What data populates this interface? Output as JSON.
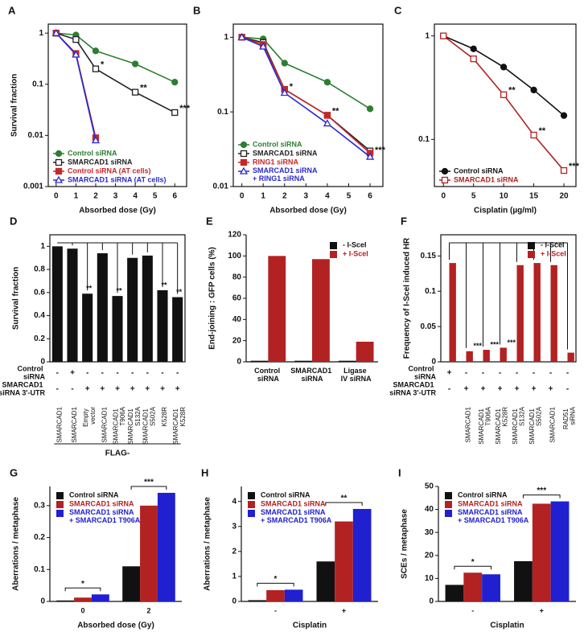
{
  "chart_data": [
    {
      "label": "A",
      "type": "line",
      "log_y": true,
      "frame": true,
      "ylabel": "Survival fraction",
      "xlabel": "Absorbed dose (Gy)",
      "xlim": [
        -0.4,
        6.6
      ],
      "xticks": [
        0,
        1,
        2,
        3,
        4,
        5,
        6
      ],
      "ylim": [
        0.001,
        1.5
      ],
      "yticks": [
        0.001,
        0.01,
        0.1,
        1
      ],
      "legend": "lower left",
      "series": [
        {
          "name": "Control siRNA",
          "color": "#2e7d32",
          "marker": "circle",
          "filled": true,
          "x": [
            0,
            1,
            2,
            4,
            6
          ],
          "values": [
            1,
            0.92,
            0.45,
            0.25,
            0.11
          ]
        },
        {
          "name": "SMARCAD1 siRNA",
          "color": "#222222",
          "marker": "square",
          "filled": false,
          "x": [
            0,
            1,
            2,
            4,
            6
          ],
          "values": [
            1,
            0.75,
            0.2,
            0.07,
            0.028
          ]
        },
        {
          "name": "Control siRNA (AT cells)",
          "color": "#c62828",
          "marker": "square",
          "filled": true,
          "x": [
            0,
            1,
            2
          ],
          "values": [
            1,
            0.4,
            0.009
          ]
        },
        {
          "name": "SMARCAD1 siRNA (AT cells)",
          "color": "#2a2acd",
          "marker": "triangle",
          "filled": false,
          "x": [
            0,
            1,
            2
          ],
          "values": [
            1,
            0.38,
            0.008
          ]
        }
      ],
      "annotations": [
        {
          "text": "*",
          "x": 2,
          "y": 0.2
        },
        {
          "text": "**",
          "x": 4,
          "y": 0.07
        },
        {
          "text": "***",
          "x": 6,
          "y": 0.028
        }
      ]
    },
    {
      "label": "B",
      "type": "line",
      "log_y": true,
      "frame": true,
      "xlabel": "Absorbed dose (Gy)",
      "xlim": [
        -0.4,
        6.6
      ],
      "xticks": [
        0,
        1,
        2,
        3,
        4,
        5,
        6
      ],
      "ylim": [
        0.01,
        1.5
      ],
      "yticks": [
        0.01,
        0.1,
        1
      ],
      "legend": "lower left",
      "series": [
        {
          "name": "Control siRNA",
          "color": "#2e7d32",
          "marker": "circle",
          "filled": true,
          "x": [
            0,
            1,
            2,
            4,
            6
          ],
          "values": [
            1,
            0.95,
            0.45,
            0.25,
            0.11
          ]
        },
        {
          "name": "SMARCAD1 siRNA",
          "color": "#222222",
          "marker": "square",
          "filled": false,
          "x": [
            0,
            1,
            2,
            4,
            6
          ],
          "values": [
            1,
            0.85,
            0.2,
            0.09,
            0.03
          ]
        },
        {
          "name": "RING1 siRNA",
          "color": "#c62828",
          "marker": "square",
          "filled": true,
          "x": [
            0,
            1,
            2,
            4,
            6
          ],
          "values": [
            1,
            0.8,
            0.2,
            0.09,
            0.028
          ]
        },
        {
          "name": "SMARCAD1 siRNA + RING1 siRNA",
          "color": "#2a2acd",
          "marker": "triangle",
          "filled": false,
          "x": [
            0,
            1,
            2,
            4,
            6
          ],
          "values": [
            1,
            0.75,
            0.18,
            0.07,
            0.025
          ]
        }
      ],
      "annotations": [
        {
          "text": "*",
          "x": 2,
          "y": 0.19
        },
        {
          "text": "**",
          "x": 4,
          "y": 0.09
        },
        {
          "text": "***",
          "x": 6,
          "y": 0.027
        }
      ]
    },
    {
      "label": "C",
      "type": "line",
      "log_y": true,
      "frame": true,
      "xlabel": "Cisplatin (µg/ml)",
      "xlim": [
        -1.5,
        22
      ],
      "xticks": [
        0,
        5,
        10,
        15,
        20
      ],
      "ylim": [
        0.035,
        1.3
      ],
      "yticks": [
        0.1,
        1
      ],
      "legend": "lower left",
      "series": [
        {
          "name": "Control siRNA",
          "color": "#111111",
          "marker": "circle",
          "filled": true,
          "x": [
            0,
            5,
            10,
            15,
            20
          ],
          "values": [
            1,
            0.75,
            0.5,
            0.3,
            0.17
          ]
        },
        {
          "name": "SMARCAD1 siRNA",
          "color": "#b22222",
          "marker": "square",
          "filled": false,
          "x": [
            0,
            5,
            10,
            15,
            20
          ],
          "values": [
            1,
            0.6,
            0.27,
            0.11,
            0.05
          ]
        }
      ],
      "annotations": [
        {
          "text": "**",
          "x": 10,
          "y": 0.27
        },
        {
          "text": "**",
          "x": 15,
          "y": 0.11
        },
        {
          "text": "***",
          "x": 20,
          "y": 0.05
        }
      ]
    },
    {
      "label": "D",
      "type": "bar",
      "frame": true,
      "bracket": true,
      "ylabel": "Survival fraction",
      "categories": [
        "SMARCAD1",
        "SMARCAD1",
        "Empty vector",
        "SMARCAD1",
        "SMARCAD1 T906A",
        "SMARCAD1 S132A",
        "SMARCAD1 S502A",
        "K528R",
        "SMARCAD1 K528R"
      ],
      "series": [
        {
          "name": null,
          "color": "#111111",
          "values": [
            1,
            0.98,
            0.59,
            0.94,
            0.57,
            0.9,
            0.92,
            0.62,
            0.56
          ]
        }
      ],
      "ylim": [
        0,
        1.1
      ],
      "yticks": [
        0,
        0.2,
        0.4,
        0.6,
        0.8,
        1
      ],
      "rows": [
        {
          "label": "Control siRNA",
          "values": [
            "-",
            "+",
            "-",
            "-",
            "-",
            "-",
            "-",
            "-",
            "-"
          ]
        },
        {
          "label": "SMARCAD1 siRNA 3'-UTR",
          "values": [
            "-",
            "-",
            "+",
            "+",
            "+",
            "+",
            "+",
            "+",
            "+"
          ]
        }
      ],
      "group_label": "FLAG-",
      "annotations": [
        {
          "text": "**",
          "category": 2
        },
        {
          "text": "**",
          "category": 4
        },
        {
          "text": "**",
          "category": 7
        },
        {
          "text": "**",
          "category": 8
        }
      ]
    },
    {
      "label": "E",
      "type": "bar",
      "frame": false,
      "ylabel": "End-joining : GFP cells (%)",
      "legend": "upper right",
      "categories": [
        "Control siRNA",
        "SMARCAD1 siRNA",
        "Ligase IV siRNA"
      ],
      "series": [
        {
          "name": "- I-SceI",
          "color": "#111111",
          "values": [
            1,
            1,
            1
          ]
        },
        {
          "name": "+ I-SceI",
          "color": "#b22222",
          "values": [
            100,
            97,
            19
          ]
        }
      ],
      "ylim": [
        0,
        120
      ],
      "yticks": [
        0,
        20,
        40,
        60,
        80,
        100,
        120
      ]
    },
    {
      "label": "F",
      "type": "bar",
      "frame": true,
      "bracket": true,
      "ylabel": "Frequency of I-SceI induced HR",
      "legend": "upper right",
      "categories": [
        null,
        "SMARCAD1",
        "SMARCAD1 T906A",
        "SMARCAD1 K528R",
        "SMARCAD1 S132A",
        "SMARCAD1 S502A",
        "SMARCAD1",
        "RAD51 siRNA"
      ],
      "series": [
        {
          "name": "- I-SceI",
          "color": "#111111",
          "values": [
            0,
            0,
            0,
            0,
            0,
            0,
            0,
            0
          ]
        },
        {
          "name": "+ I-SceI",
          "color": "#b22222",
          "values": [
            0.14,
            0.015,
            0.017,
            0.02,
            0.137,
            0.14,
            0.137,
            0.013
          ]
        }
      ],
      "ylim": [
        0,
        0.18
      ],
      "yticks": [
        0,
        0.05,
        0.1,
        0.15
      ],
      "rows": [
        {
          "label": "Control siRNA",
          "values": [
            "+",
            "-",
            "-",
            "-",
            "-",
            "-",
            "-",
            "-"
          ]
        },
        {
          "label": "SMARCAD1 siRNA 3'-UTR",
          "values": [
            "-",
            "+",
            "+",
            "+",
            "+",
            "+",
            "+",
            "-"
          ]
        }
      ],
      "annotations": [
        {
          "text": "***",
          "category": 1
        },
        {
          "text": "***",
          "category": 2
        },
        {
          "text": "***",
          "category": 3
        }
      ]
    },
    {
      "label": "G",
      "type": "bar",
      "frame": false,
      "group_brackets": true,
      "ylabel": "Aberrations / metaphase",
      "xlabel": "Absorbed dose (Gy)",
      "legend": "upper left",
      "categories": [
        "0",
        "2"
      ],
      "series": [
        {
          "name": "Control siRNA",
          "color": "#111111",
          "values": [
            0.003,
            0.11
          ]
        },
        {
          "name": "SMARCAD1 siRNA",
          "color": "#b22222",
          "values": [
            0.012,
            0.3
          ]
        },
        {
          "name": "SMARCAD1 siRNA + SMARCAD1 T906A",
          "color": "#2020d0",
          "values": [
            0.022,
            0.34
          ]
        }
      ],
      "ylim": [
        0,
        0.36
      ],
      "yticks": [
        0,
        0.1,
        0.2,
        0.3
      ],
      "annotations": [
        {
          "text": "*",
          "category": 0
        },
        {
          "text": "***",
          "category": 1
        }
      ]
    },
    {
      "label": "H",
      "type": "bar",
      "frame": false,
      "group_brackets": true,
      "ylabel": "Aberrations / metaphase",
      "xlabel": "Cisplatin",
      "legend": "upper left",
      "categories": [
        "-",
        "+"
      ],
      "series": [
        {
          "name": "Control siRNA",
          "color": "#111111",
          "values": [
            0.05,
            1.6
          ]
        },
        {
          "name": "SMARCAD1 siRNA",
          "color": "#b22222",
          "values": [
            0.45,
            3.2
          ]
        },
        {
          "name": "SMARCAD1 siRNA + SMARCAD1 T906A",
          "color": "#2020d0",
          "values": [
            0.47,
            3.7
          ]
        }
      ],
      "ylim": [
        0,
        4.6
      ],
      "yticks": [
        0,
        1,
        2,
        3,
        4
      ],
      "annotations": [
        {
          "text": "*",
          "category": 0
        },
        {
          "text": "**",
          "category": 1
        }
      ]
    },
    {
      "label": "I",
      "type": "bar",
      "frame": false,
      "group_brackets": true,
      "ylabel": "SCEs / metaphase",
      "xlabel": "Cisplatin",
      "legend": "upper left",
      "categories": [
        "-",
        "+"
      ],
      "series": [
        {
          "name": "Control siRNA",
          "color": "#111111",
          "values": [
            7.2,
            17.5
          ]
        },
        {
          "name": "SMARCAD1 siRNA",
          "color": "#b22222",
          "values": [
            12.5,
            42.5
          ]
        },
        {
          "name": "SMARCAD1 siRNA + SMARCAD1 T906A",
          "color": "#2020d0",
          "values": [
            11.8,
            43.5
          ]
        }
      ],
      "ylim": [
        0,
        50
      ],
      "yticks": [
        0,
        10,
        20,
        30,
        40,
        50
      ],
      "annotations": [
        {
          "text": "*",
          "category": 0
        },
        {
          "text": "***",
          "category": 1
        }
      ]
    }
  ]
}
